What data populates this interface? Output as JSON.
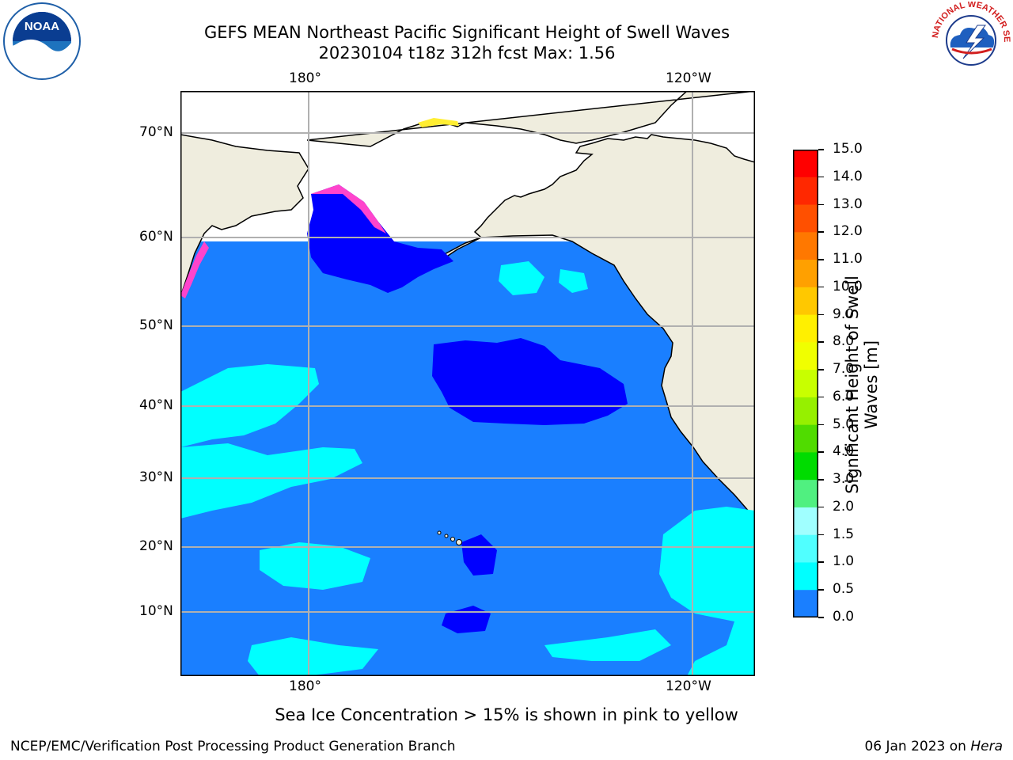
{
  "header": {
    "title_line1": "GEFS MEAN Northeast Pacific Significant Height of Swell Waves",
    "title_line2": "20230104 t18z 312h fcst   Max: 1.56"
  },
  "logos": {
    "left": {
      "icon": "noaa-logo",
      "text": "NOAA"
    },
    "right": {
      "icon": "national-weather-service-logo",
      "text": "NATIONAL WEATHER SERVICE"
    }
  },
  "map": {
    "lon_labels_top": [
      "180°",
      "120°W"
    ],
    "lon_labels_bottom": [
      "180°",
      "120°W"
    ],
    "lat_labels": [
      "70°N",
      "60°N",
      "50°N",
      "40°N",
      "30°N",
      "20°N",
      "10°N"
    ],
    "colors": {
      "ocean_main": "#1a7fff",
      "ocean_dark": "#0000ff",
      "ocean_light": "#00ffff",
      "land": "#efedde",
      "grid": "#b0b0b0",
      "ice_pink": "#ff44cc",
      "ice_yellow": "#ffee33"
    }
  },
  "colorbar": {
    "title": "Significant Height of Swell Waves [m]",
    "ticks": [
      "15.0",
      "14.0",
      "13.0",
      "12.0",
      "11.0",
      "10.0",
      "9.0",
      "8.0",
      "7.0",
      "6.0",
      "5.0",
      "4.0",
      "3.0",
      "2.0",
      "1.5",
      "1.0",
      "0.5",
      "0.0"
    ],
    "colors_top_to_bottom": [
      "#ff0000",
      "#ff2800",
      "#ff5000",
      "#ff7800",
      "#ffa000",
      "#ffc800",
      "#fff000",
      "#f0ff00",
      "#c8ff00",
      "#96f000",
      "#50dc00",
      "#00dc00",
      "#50f080",
      "#a0ffff",
      "#50ffff",
      "#00ffff",
      "#1a7fff",
      "#0000ff"
    ]
  },
  "notes": {
    "sea_ice": "Sea Ice Concentration > 15% is shown in pink to yellow"
  },
  "footer": {
    "left": "NCEP/EMC/Verification Post Processing Product Generation Branch",
    "right_date": "06 Jan 2023 on ",
    "right_host": "Hera"
  }
}
